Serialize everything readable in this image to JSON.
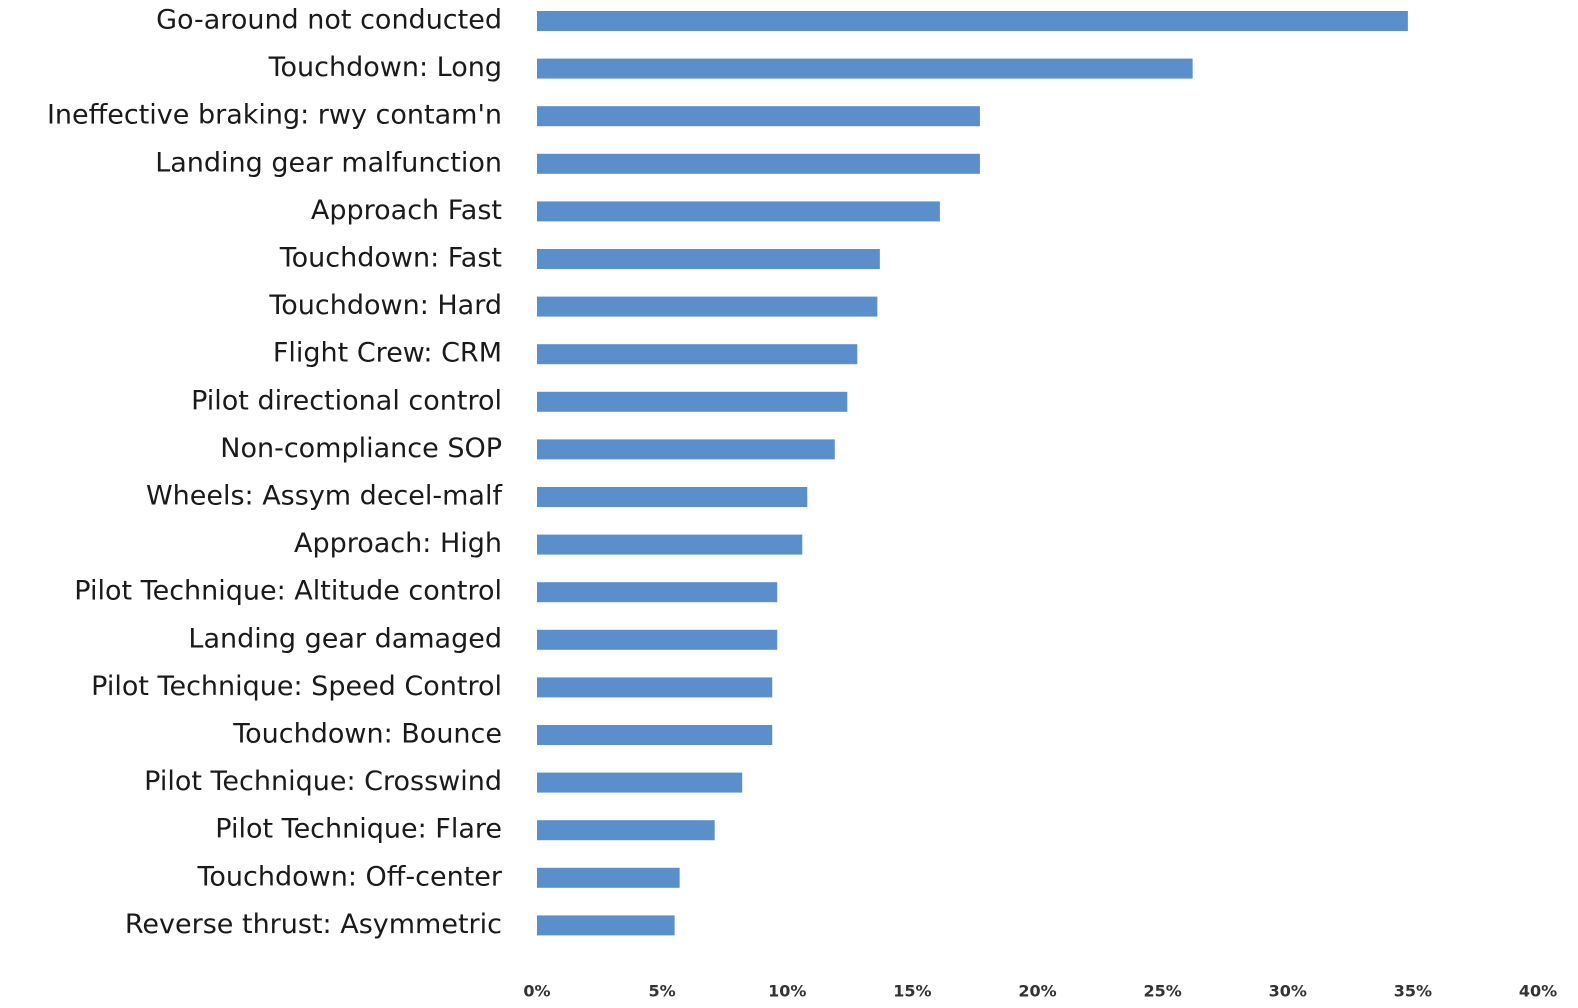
{
  "chart_data": {
    "type": "barh",
    "categories": [
      "Go-around not conducted",
      "Touchdown: Long",
      "Ineffective braking: rwy contam'n",
      "Landing gear malfunction",
      "Approach Fast",
      "Touchdown: Fast",
      "Touchdown: Hard",
      "Flight Crew: CRM",
      "Pilot directional control",
      "Non-compliance SOP",
      "Wheels: Assym decel-malf",
      "Approach: High",
      "Pilot Technique: Altitude control",
      "Landing gear damaged",
      "Pilot Technique: Speed Control",
      "Touchdown: Bounce",
      "Pilot Technique: Crosswind",
      "Pilot Technique: Flare",
      "Touchdown: Off-center",
      "Reverse thrust: Asymmetric"
    ],
    "values": [
      34.8,
      26.2,
      17.7,
      17.7,
      16.1,
      13.7,
      13.6,
      12.8,
      12.4,
      11.9,
      10.8,
      10.6,
      9.6,
      9.6,
      9.4,
      9.4,
      8.2,
      7.1,
      5.7,
      5.5
    ],
    "color": "#5b8fcb",
    "xlim": [
      0,
      40
    ],
    "xticks": [
      {
        "value": 0,
        "label": "0%"
      },
      {
        "value": 5,
        "label": "5%"
      },
      {
        "value": 10,
        "label": "10%"
      },
      {
        "value": 15,
        "label": "15%"
      },
      {
        "value": 20,
        "label": "20%"
      },
      {
        "value": 25,
        "label": "25%"
      },
      {
        "value": 30,
        "label": "30%"
      },
      {
        "value": 35,
        "label": "35%"
      },
      {
        "value": 40,
        "label": "40%"
      }
    ],
    "grid": false
  }
}
